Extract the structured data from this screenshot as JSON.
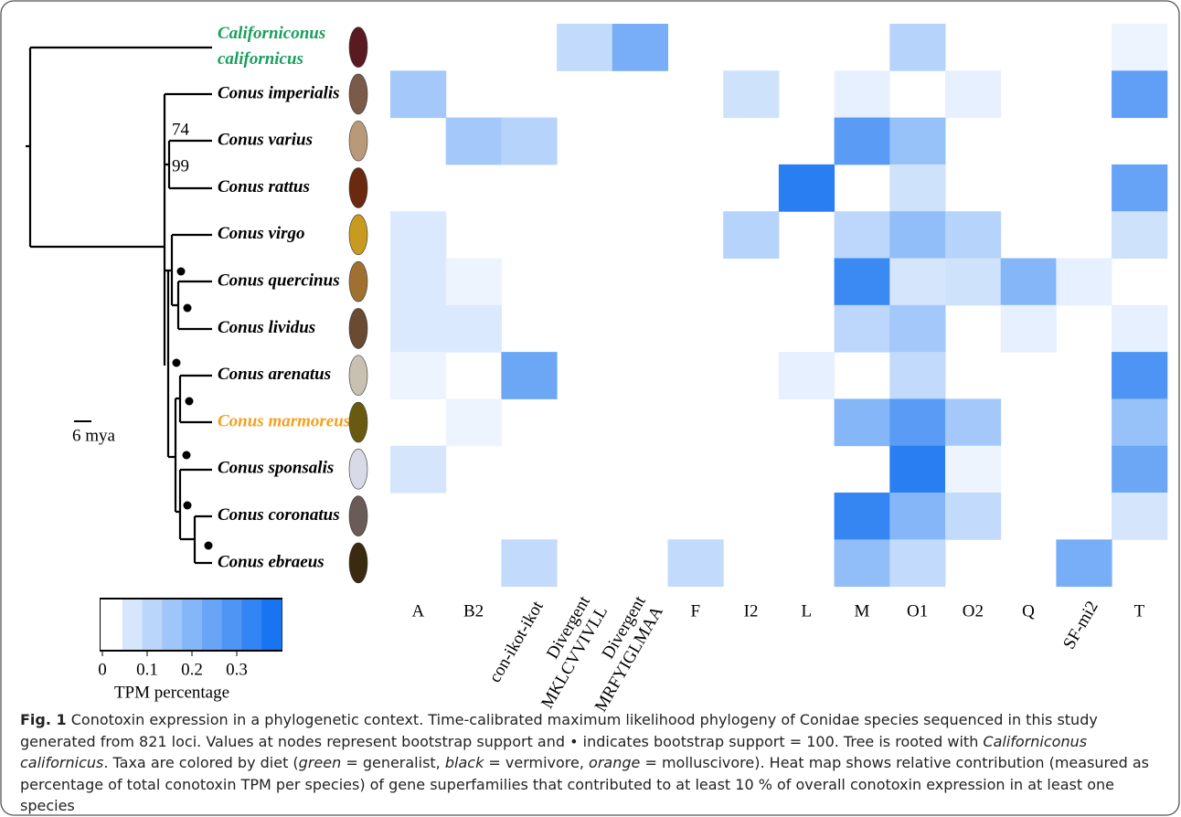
{
  "chart_data": {
    "type": "heatmap",
    "rows": [
      {
        "name": [
          "Californiconus",
          "californicus"
        ],
        "color": "#1a9e5c"
      },
      {
        "name": [
          "Conus imperialis"
        ],
        "color": "#000000"
      },
      {
        "name": [
          "Conus varius"
        ],
        "color": "#000000"
      },
      {
        "name": [
          "Conus rattus"
        ],
        "color": "#000000"
      },
      {
        "name": [
          "Conus virgo"
        ],
        "color": "#000000"
      },
      {
        "name": [
          "Conus quercinus"
        ],
        "color": "#000000"
      },
      {
        "name": [
          "Conus lividus"
        ],
        "color": "#000000"
      },
      {
        "name": [
          "Conus arenatus"
        ],
        "color": "#000000"
      },
      {
        "name": [
          "Conus marmoreus"
        ],
        "color": "#f5a020"
      },
      {
        "name": [
          "Conus sponsalis"
        ],
        "color": "#000000"
      },
      {
        "name": [
          "Conus coronatus"
        ],
        "color": "#000000"
      },
      {
        "name": [
          "Conus ebraeus"
        ],
        "color": "#000000"
      }
    ],
    "columns": [
      [
        "A"
      ],
      [
        "B2"
      ],
      [
        "con-ikot-ikot"
      ],
      [
        "Divergent",
        "MKLCVVIVLL"
      ],
      [
        "Divergent",
        "MRFYIGLMAA"
      ],
      [
        "F"
      ],
      [
        "I2"
      ],
      [
        "L"
      ],
      [
        "M"
      ],
      [
        "O1"
      ],
      [
        "O2"
      ],
      [
        "Q"
      ],
      [
        "SF-mi2"
      ],
      [
        "T"
      ]
    ],
    "values": [
      [
        null,
        null,
        null,
        0.1,
        0.22,
        null,
        null,
        null,
        null,
        0.12,
        null,
        null,
        null,
        0.03
      ],
      [
        0.15,
        null,
        null,
        null,
        null,
        null,
        0.08,
        null,
        0.04,
        null,
        0.04,
        null,
        null,
        0.26
      ],
      [
        null,
        0.15,
        0.12,
        null,
        null,
        null,
        null,
        null,
        0.27,
        0.17,
        null,
        null,
        null,
        null
      ],
      [
        null,
        null,
        null,
        null,
        null,
        null,
        null,
        0.35,
        null,
        0.08,
        null,
        null,
        null,
        0.25
      ],
      [
        0.06,
        null,
        null,
        null,
        null,
        null,
        0.12,
        null,
        0.11,
        0.18,
        0.12,
        null,
        null,
        0.08
      ],
      [
        0.06,
        0.03,
        null,
        null,
        null,
        null,
        null,
        null,
        0.32,
        0.07,
        0.08,
        0.2,
        0.04,
        null
      ],
      [
        0.06,
        0.06,
        null,
        null,
        null,
        null,
        null,
        null,
        0.11,
        0.15,
        null,
        0.04,
        null,
        0.04
      ],
      [
        0.03,
        null,
        0.24,
        null,
        null,
        null,
        null,
        0.04,
        null,
        0.1,
        null,
        null,
        null,
        0.29
      ],
      [
        null,
        0.03,
        null,
        null,
        null,
        null,
        null,
        null,
        0.2,
        0.27,
        0.15,
        null,
        null,
        0.17
      ],
      [
        0.07,
        null,
        null,
        null,
        null,
        null,
        null,
        null,
        null,
        0.35,
        0.03,
        null,
        null,
        0.24
      ],
      [
        null,
        null,
        null,
        null,
        null,
        null,
        null,
        null,
        0.33,
        0.2,
        0.1,
        null,
        null,
        0.07
      ],
      [
        null,
        null,
        0.1,
        null,
        null,
        0.1,
        null,
        null,
        0.18,
        0.1,
        null,
        null,
        0.22,
        null
      ]
    ],
    "colormap": [
      "#ffffff",
      "#0a6cf0"
    ],
    "vlim": [
      0,
      0.4
    ],
    "vticks": [
      0,
      0.1,
      0.2,
      0.3
    ],
    "colorbar_label": "TPM percentage",
    "node_labels": [
      "74",
      "99"
    ],
    "scale_bar": "6 mya"
  },
  "caption": {
    "label": "Fig. 1",
    "parts": [
      " Conotoxin expression in a phylogenetic context. Time-calibrated maximum likelihood phylogeny of Conidae species sequenced in this study generated from 821 loci. Values at nodes represent bootstrap support and • indicates bootstrap support = 100. Tree is rooted with ",
      "Californiconus californicus",
      ". Taxa are colored by diet (",
      "green",
      " = generalist, ",
      "black",
      " = vermivore, ",
      "orange",
      " = molluscivore). Heat map shows relative contribution (measured as percentage of total conotoxin TPM per species) of gene superfamilies that contributed to at least 10 % of overall conotoxin expression in at least one species"
    ]
  }
}
